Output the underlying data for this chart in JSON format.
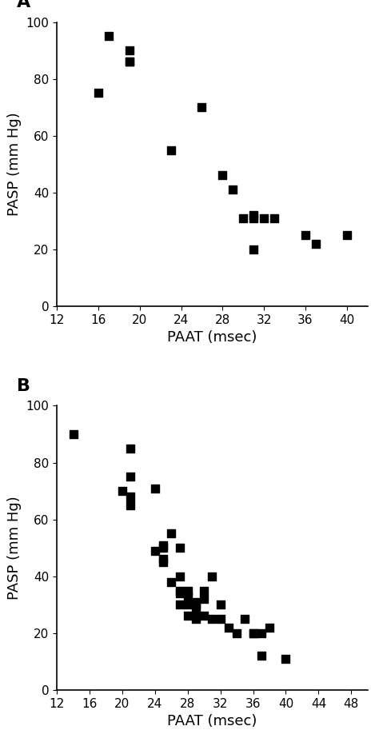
{
  "panel_A": {
    "x": [
      16,
      17,
      19,
      19,
      19,
      23,
      26,
      28,
      29,
      30,
      31,
      31,
      31,
      32,
      33,
      36,
      37,
      40
    ],
    "y": [
      75,
      95,
      90,
      86,
      86,
      55,
      70,
      46,
      41,
      31,
      31,
      32,
      20,
      31,
      31,
      25,
      22,
      25
    ],
    "xlabel": "PAAT (msec)",
    "ylabel": "PASP (mm Hg)",
    "label": "A",
    "xlim": [
      12,
      42
    ],
    "ylim": [
      0,
      100
    ],
    "xticks": [
      12,
      16,
      20,
      24,
      28,
      32,
      36,
      40
    ],
    "yticks": [
      0,
      20,
      40,
      60,
      80,
      100
    ]
  },
  "panel_B": {
    "x": [
      14,
      20,
      21,
      21,
      21,
      21,
      24,
      24,
      25,
      25,
      25,
      25,
      26,
      26,
      27,
      27,
      27,
      27,
      27,
      28,
      28,
      28,
      28,
      29,
      29,
      29,
      29,
      30,
      30,
      30,
      31,
      31,
      32,
      32,
      33,
      34,
      35,
      36,
      36,
      37,
      37,
      38,
      40
    ],
    "y": [
      90,
      70,
      85,
      75,
      68,
      65,
      71,
      49,
      51,
      50,
      46,
      45,
      55,
      38,
      50,
      40,
      35,
      34,
      30,
      35,
      33,
      30,
      26,
      31,
      30,
      28,
      25,
      35,
      32,
      26,
      40,
      25,
      30,
      25,
      22,
      20,
      25,
      20,
      20,
      12,
      20,
      22,
      11
    ],
    "xlabel": "PAAT (msec)",
    "ylabel": "PASP (mm Hg)",
    "label": "B",
    "xlim": [
      12,
      50
    ],
    "ylim": [
      0,
      100
    ],
    "xticks": [
      12,
      16,
      20,
      24,
      28,
      32,
      36,
      40,
      44,
      48
    ],
    "yticks": [
      0,
      20,
      40,
      60,
      80,
      100
    ]
  },
  "marker": "s",
  "marker_size": 55,
  "marker_color": "black",
  "background_color": "white",
  "label_fontsize": 13,
  "tick_fontsize": 11,
  "panel_label_fontsize": 16
}
